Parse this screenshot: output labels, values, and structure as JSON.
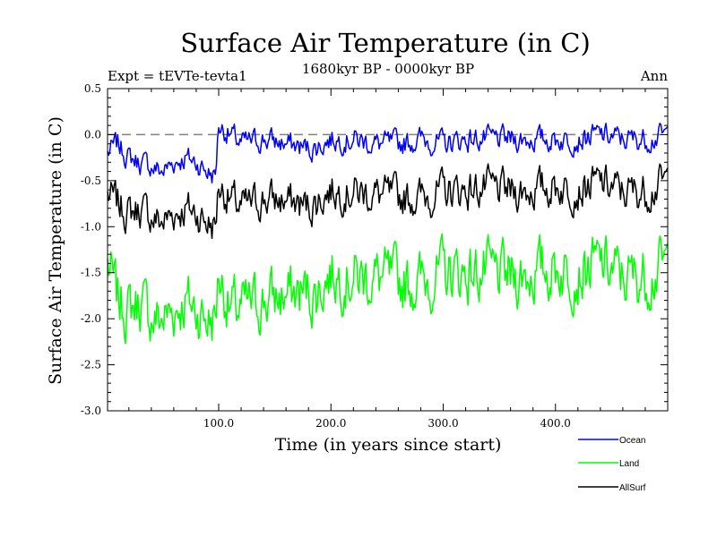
{
  "chart_data": {
    "type": "line",
    "title": "Surface Air Temperature (in C)",
    "subtitle": "1680kyr BP - 0000kyr BP",
    "left_label": "Expt = tEVTe-tevta1",
    "right_label": "Ann",
    "xlabel": "Time (in years since start)",
    "ylabel": "Surface Air Temperature (in C)",
    "xlim": [
      1,
      500
    ],
    "ylim": [
      -3.0,
      0.5
    ],
    "x_ticks": [
      100,
      200,
      300,
      400
    ],
    "x_tick_labels": [
      "100.0",
      "200.0",
      "300.0",
      "400.0"
    ],
    "y_ticks": [
      -3.0,
      -2.5,
      -2.0,
      -1.5,
      -1.0,
      -0.5,
      0.0,
      0.5
    ],
    "y_tick_labels": [
      "-3.0",
      "-2.5",
      "-2.0",
      "-1.5",
      "-1.0",
      "-0.5",
      "0.0",
      "0.5"
    ],
    "reference_line": 0.0,
    "legend_position": "below-right",
    "series": [
      {
        "name": "Ocean",
        "color": "#0000ff",
        "keypoints": [
          [
            1,
            -0.2
          ],
          [
            10,
            -0.1
          ],
          [
            20,
            -0.25
          ],
          [
            30,
            -0.3
          ],
          [
            40,
            -0.35
          ],
          [
            50,
            -0.4
          ],
          [
            60,
            -0.3
          ],
          [
            70,
            -0.25
          ],
          [
            80,
            -0.3
          ],
          [
            90,
            -0.4
          ],
          [
            97,
            -0.45
          ],
          [
            100,
            0.1
          ],
          [
            110,
            0.0
          ],
          [
            120,
            -0.1
          ],
          [
            140,
            -0.05
          ],
          [
            160,
            -0.1
          ],
          [
            180,
            -0.15
          ],
          [
            185,
            -0.15
          ],
          [
            200,
            -0.05
          ],
          [
            220,
            -0.05
          ],
          [
            240,
            -0.1
          ],
          [
            260,
            -0.1
          ],
          [
            280,
            -0.05
          ],
          [
            300,
            -0.1
          ],
          [
            320,
            -0.05
          ],
          [
            340,
            -0.05
          ],
          [
            360,
            -0.05
          ],
          [
            380,
            -0.05
          ],
          [
            400,
            -0.05
          ],
          [
            420,
            -0.05
          ],
          [
            440,
            0.0
          ],
          [
            460,
            -0.05
          ],
          [
            480,
            -0.05
          ],
          [
            500,
            0.0
          ]
        ]
      },
      {
        "name": "Land",
        "color": "#00ff00",
        "keypoints": [
          [
            1,
            -1.4
          ],
          [
            10,
            -1.8
          ],
          [
            20,
            -1.9
          ],
          [
            30,
            -1.8
          ],
          [
            40,
            -2.0
          ],
          [
            50,
            -2.0
          ],
          [
            60,
            -1.9
          ],
          [
            70,
            -1.8
          ],
          [
            80,
            -1.9
          ],
          [
            90,
            -2.0
          ],
          [
            97,
            -2.0
          ],
          [
            100,
            -1.5
          ],
          [
            110,
            -1.9
          ],
          [
            120,
            -1.9
          ],
          [
            140,
            -1.8
          ],
          [
            160,
            -1.75
          ],
          [
            180,
            -1.7
          ],
          [
            185,
            -1.75
          ],
          [
            200,
            -1.5
          ],
          [
            220,
            -1.55
          ],
          [
            240,
            -1.55
          ],
          [
            260,
            -1.6
          ],
          [
            280,
            -1.6
          ],
          [
            300,
            -1.5
          ],
          [
            320,
            -1.5
          ],
          [
            340,
            -1.5
          ],
          [
            360,
            -1.55
          ],
          [
            380,
            -1.5
          ],
          [
            400,
            -1.45
          ],
          [
            420,
            -1.5
          ],
          [
            440,
            -1.4
          ],
          [
            460,
            -1.55
          ],
          [
            480,
            -1.55
          ],
          [
            500,
            -1.4
          ]
        ]
      },
      {
        "name": "AllSurf",
        "color": "#000000",
        "keypoints": [
          [
            1,
            -0.65
          ],
          [
            10,
            -0.75
          ],
          [
            20,
            -0.85
          ],
          [
            30,
            -0.8
          ],
          [
            40,
            -0.9
          ],
          [
            50,
            -0.95
          ],
          [
            60,
            -0.85
          ],
          [
            70,
            -0.8
          ],
          [
            80,
            -0.85
          ],
          [
            90,
            -0.95
          ],
          [
            97,
            -1.0
          ],
          [
            100,
            -0.55
          ],
          [
            110,
            -0.7
          ],
          [
            120,
            -0.8
          ],
          [
            140,
            -0.7
          ],
          [
            160,
            -0.72
          ],
          [
            180,
            -0.78
          ],
          [
            185,
            -0.75
          ],
          [
            200,
            -0.6
          ],
          [
            220,
            -0.62
          ],
          [
            240,
            -0.65
          ],
          [
            260,
            -0.68
          ],
          [
            280,
            -0.68
          ],
          [
            300,
            -0.62
          ],
          [
            320,
            -0.6
          ],
          [
            340,
            -0.58
          ],
          [
            360,
            -0.62
          ],
          [
            380,
            -0.6
          ],
          [
            400,
            -0.56
          ],
          [
            420,
            -0.6
          ],
          [
            440,
            -0.52
          ],
          [
            460,
            -0.62
          ],
          [
            480,
            -0.62
          ],
          [
            500,
            -0.5
          ]
        ]
      }
    ]
  }
}
